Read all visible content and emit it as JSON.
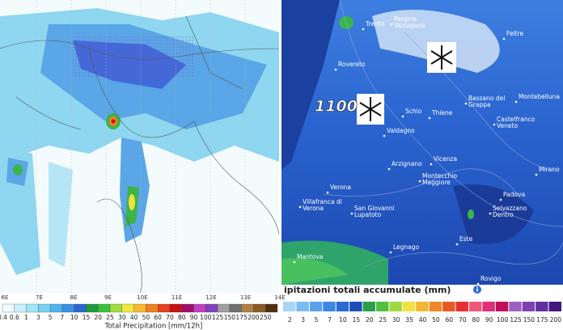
{
  "left_map": {
    "lon_labels": [
      "6E",
      "7E",
      "8E",
      "9E",
      "10E",
      "11E",
      "12E",
      "13E",
      "14E"
    ],
    "legend": {
      "title": "Total Precipitation [mm/12h]",
      "labels": [
        0.4,
        0.6,
        1,
        3,
        5,
        7,
        10,
        15,
        20,
        25,
        30,
        40,
        50,
        60,
        70,
        80,
        90,
        100,
        125,
        150,
        175,
        200,
        250
      ]
    }
  },
  "right_map": {
    "altitude_label": "1100",
    "places": [
      "Trento",
      "Pergine Valsugana",
      "Feltre",
      "Rovereto",
      "Bassano del Grappa",
      "Montebelluna",
      "Schio",
      "Thiene",
      "Castelfranco Veneto",
      "Valdagno",
      "Arzignano",
      "Vicenza",
      "Montecchio Maggiore",
      "Mirano",
      "Verona",
      "Villafranca di Verona",
      "San Giovanni Lupatoto",
      "Padova",
      "Selvazzano Dentro",
      "Legnago",
      "Este",
      "Mantova",
      "Rovigo"
    ],
    "legend": {
      "title": "ipitazioni totali accumulate (mm)",
      "labels": [
        2,
        3,
        5,
        7,
        10,
        15,
        20,
        25,
        30,
        35,
        40,
        50,
        60,
        70,
        80,
        90,
        100,
        125,
        150,
        175,
        200
      ]
    }
  }
}
